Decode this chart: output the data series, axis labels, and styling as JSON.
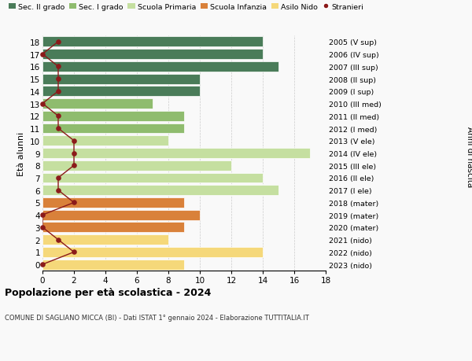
{
  "ages": [
    18,
    17,
    16,
    15,
    14,
    13,
    12,
    11,
    10,
    9,
    8,
    7,
    6,
    5,
    4,
    3,
    2,
    1,
    0
  ],
  "years": [
    "2005 (V sup)",
    "2006 (IV sup)",
    "2007 (III sup)",
    "2008 (II sup)",
    "2009 (I sup)",
    "2010 (III med)",
    "2011 (II med)",
    "2012 (I med)",
    "2013 (V ele)",
    "2014 (IV ele)",
    "2015 (III ele)",
    "2016 (II ele)",
    "2017 (I ele)",
    "2018 (mater)",
    "2019 (mater)",
    "2020 (mater)",
    "2021 (nido)",
    "2022 (nido)",
    "2023 (nido)"
  ],
  "bar_values": [
    14,
    14,
    15,
    10,
    10,
    7,
    9,
    9,
    8,
    17,
    12,
    14,
    15,
    9,
    10,
    9,
    8,
    14,
    9
  ],
  "bar_colors": [
    "#4a7c59",
    "#4a7c59",
    "#4a7c59",
    "#4a7c59",
    "#4a7c59",
    "#8fbc6e",
    "#8fbc6e",
    "#8fbc6e",
    "#c5dfa0",
    "#c5dfa0",
    "#c5dfa0",
    "#c5dfa0",
    "#c5dfa0",
    "#d9813a",
    "#d9813a",
    "#d9813a",
    "#f5d87a",
    "#f5d87a",
    "#f5d87a"
  ],
  "stranieri_values": [
    1,
    0,
    1,
    1,
    1,
    0,
    1,
    1,
    2,
    2,
    2,
    1,
    1,
    2,
    0,
    0,
    1,
    2,
    0
  ],
  "stranieri_color": "#8b1a1a",
  "title": "Popolazione per età scolastica - 2024",
  "subtitle": "COMUNE DI SAGLIANO MICCA (BI) - Dati ISTAT 1° gennaio 2024 - Elaborazione TUTTITALIA.IT",
  "ylabel": "Età alunni",
  "right_label": "Anni di nascita",
  "xlim": [
    0,
    18
  ],
  "legend_labels": [
    "Sec. II grado",
    "Sec. I grado",
    "Scuola Primaria",
    "Scuola Infanzia",
    "Asilo Nido",
    "Stranieri"
  ],
  "legend_colors": [
    "#4a7c59",
    "#8fbc6e",
    "#c5dfa0",
    "#d9813a",
    "#f5d87a",
    "#8b1a1a"
  ],
  "bg_color": "#f9f9f9"
}
